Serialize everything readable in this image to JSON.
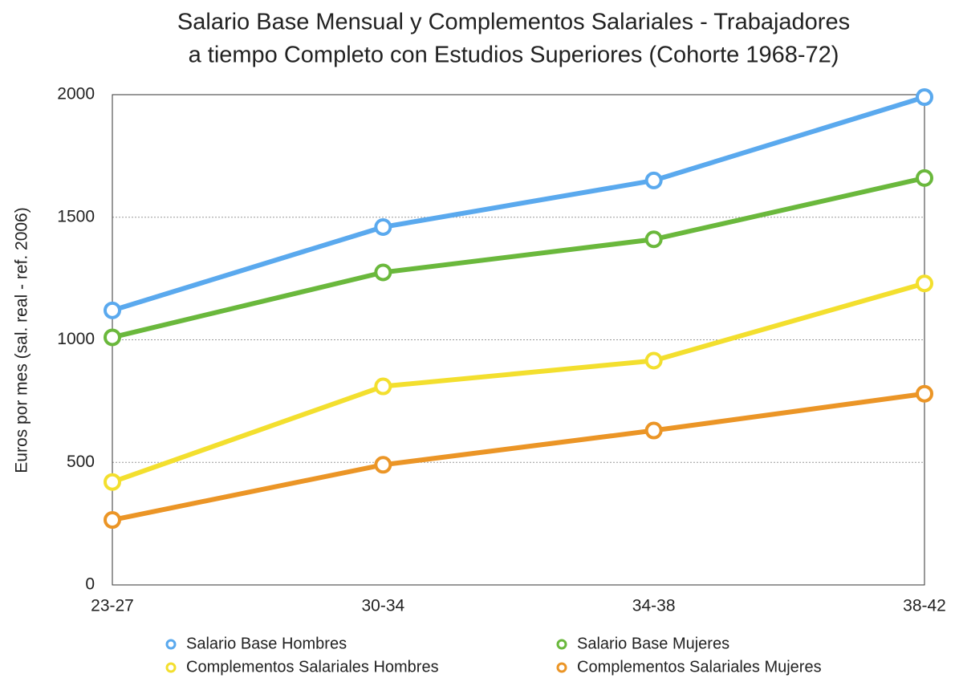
{
  "chart_data": {
    "type": "line",
    "title": [
      "Salario Base Mensual y Complementos Salariales - Trabajadores",
      "a tiempo Completo con Estudios Superiores (Cohorte 1968-72)"
    ],
    "y_label": "Euros por mes (sal. real - ref. 2006)",
    "categories": [
      "23-27",
      "30-34",
      "34-38",
      "38-42"
    ],
    "series": [
      {
        "name": "Salario Base Hombres",
        "color": "#5aa9ee",
        "values": [
          1120,
          1460,
          1650,
          1990
        ]
      },
      {
        "name": "Salario Base Mujeres",
        "color": "#6ab83c",
        "values": [
          1010,
          1275,
          1410,
          1660
        ]
      },
      {
        "name": "Complementos Salariales Hombres",
        "color": "#f3df2e",
        "values": [
          420,
          810,
          915,
          1230
        ]
      },
      {
        "name": "Complementos Salariales Mujeres",
        "color": "#eb9526",
        "values": [
          265,
          490,
          630,
          780
        ]
      }
    ],
    "ylim": [
      0,
      2000
    ],
    "yticks": [
      0,
      500,
      1000,
      1500,
      2000
    ],
    "grid": true
  }
}
